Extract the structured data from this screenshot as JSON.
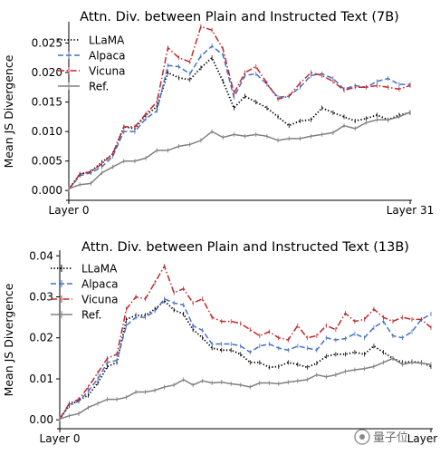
{
  "chart_data": [
    {
      "type": "line",
      "title": "Attn. Div. between Plain and Instructed Text (7B)",
      "xlabel": "",
      "ylabel": "Mean JS Divergence",
      "xticks": [
        {
          "x": 0,
          "label": "Layer 0"
        },
        {
          "x": 31,
          "label": "Layer 31"
        }
      ],
      "yticks": [
        0.0,
        0.005,
        0.01,
        0.015,
        0.02,
        0.025
      ],
      "ytick_labels": [
        "0.000",
        "0.005",
        "0.010",
        "0.015",
        "0.020",
        "0.025"
      ],
      "xlim": [
        0,
        31
      ],
      "ylim": [
        -0.0012,
        0.028
      ],
      "legend": "top-left",
      "grid": false,
      "series": [
        {
          "name": "LLaMA",
          "color": "#000000",
          "style": "dotted",
          "values": [
            0.0002,
            0.0028,
            0.0032,
            0.0048,
            0.0062,
            0.0108,
            0.0105,
            0.0128,
            0.0142,
            0.02,
            0.0191,
            0.0188,
            0.0208,
            0.0225,
            0.0185,
            0.014,
            0.016,
            0.015,
            0.014,
            0.0125,
            0.011,
            0.0118,
            0.012,
            0.014,
            0.0132,
            0.0125,
            0.0118,
            0.0122,
            0.0128,
            0.012,
            0.0128,
            0.0132
          ]
        },
        {
          "name": "Alpaca",
          "color": "#4472c4",
          "style": "dashed",
          "values": [
            0.0002,
            0.0025,
            0.003,
            0.004,
            0.0058,
            0.01,
            0.01,
            0.0122,
            0.0135,
            0.0212,
            0.021,
            0.0198,
            0.0228,
            0.0245,
            0.023,
            0.0158,
            0.0195,
            0.0198,
            0.018,
            0.0158,
            0.016,
            0.0175,
            0.0195,
            0.0198,
            0.019,
            0.0172,
            0.0178,
            0.0175,
            0.0185,
            0.019,
            0.018,
            0.018
          ]
        },
        {
          "name": "Vicuna",
          "color": "#c0282d",
          "style": "dashdot",
          "values": [
            0.0002,
            0.0028,
            0.0032,
            0.0045,
            0.0062,
            0.0108,
            0.0108,
            0.013,
            0.015,
            0.0242,
            0.0225,
            0.0218,
            0.0278,
            0.0272,
            0.024,
            0.0165,
            0.02,
            0.021,
            0.0182,
            0.0155,
            0.016,
            0.0182,
            0.02,
            0.0195,
            0.0185,
            0.017,
            0.0175,
            0.0175,
            0.0178,
            0.0175,
            0.0172,
            0.0178
          ]
        },
        {
          "name": "Ref.",
          "color": "#808080",
          "style": "solid",
          "values": [
            0.0003,
            0.001,
            0.0012,
            0.003,
            0.004,
            0.005,
            0.005,
            0.0055,
            0.0068,
            0.0068,
            0.0075,
            0.0078,
            0.0085,
            0.01,
            0.009,
            0.0095,
            0.0092,
            0.0095,
            0.0092,
            0.0085,
            0.0088,
            0.0088,
            0.0092,
            0.0095,
            0.0098,
            0.011,
            0.0105,
            0.0115,
            0.012,
            0.012,
            0.0125,
            0.0133
          ]
        }
      ]
    },
    {
      "type": "line",
      "title": "Attn. Div. between Plain and Instructed Text (13B)",
      "xlabel": "",
      "ylabel": "Mean JS Divergence",
      "xticks": [
        {
          "x": 0,
          "label": "Layer 0"
        },
        {
          "x": 39,
          "label": "Layer 39"
        }
      ],
      "yticks": [
        0.0,
        0.01,
        0.02,
        0.03,
        0.04
      ],
      "ytick_labels": [
        "0.00",
        "0.01",
        "0.02",
        "0.03",
        "0.04"
      ],
      "xlim": [
        0,
        39
      ],
      "ylim": [
        -0.0015,
        0.0405
      ],
      "legend": "top-left",
      "grid": false,
      "series": [
        {
          "name": "LLaMA",
          "color": "#000000",
          "style": "dotted",
          "values": [
            0.0002,
            0.0035,
            0.0048,
            0.006,
            0.009,
            0.013,
            0.014,
            0.0245,
            0.0255,
            0.0255,
            0.027,
            0.029,
            0.0268,
            0.0258,
            0.022,
            0.02,
            0.0175,
            0.017,
            0.017,
            0.016,
            0.014,
            0.014,
            0.0128,
            0.013,
            0.014,
            0.0135,
            0.0128,
            0.0138,
            0.0155,
            0.016,
            0.016,
            0.0165,
            0.016,
            0.018,
            0.0165,
            0.015,
            0.014,
            0.0142,
            0.014,
            0.013
          ]
        },
        {
          "name": "Alpaca",
          "color": "#4472c4",
          "style": "dashed",
          "values": [
            0.0002,
            0.0038,
            0.0045,
            0.007,
            0.01,
            0.014,
            0.0145,
            0.023,
            0.025,
            0.025,
            0.0265,
            0.0295,
            0.0285,
            0.028,
            0.023,
            0.0218,
            0.0185,
            0.0185,
            0.0185,
            0.018,
            0.0165,
            0.018,
            0.0185,
            0.0175,
            0.017,
            0.018,
            0.0175,
            0.017,
            0.02,
            0.0195,
            0.0198,
            0.021,
            0.02,
            0.0225,
            0.024,
            0.0205,
            0.02,
            0.0215,
            0.0245,
            0.0258
          ]
        },
        {
          "name": "Vicuna",
          "color": "#c0282d",
          "style": "dashdot",
          "values": [
            0.0002,
            0.004,
            0.005,
            0.008,
            0.0115,
            0.015,
            0.016,
            0.027,
            0.03,
            0.0295,
            0.0335,
            0.0375,
            0.031,
            0.032,
            0.0285,
            0.0295,
            0.025,
            0.024,
            0.024,
            0.0235,
            0.022,
            0.0205,
            0.0215,
            0.02,
            0.0195,
            0.023,
            0.02,
            0.0205,
            0.023,
            0.022,
            0.026,
            0.024,
            0.0245,
            0.027,
            0.025,
            0.024,
            0.025,
            0.0245,
            0.0245,
            0.0225
          ]
        },
        {
          "name": "Ref.",
          "color": "#808080",
          "style": "solid",
          "values": [
            0.0002,
            0.001,
            0.0015,
            0.003,
            0.004,
            0.005,
            0.005,
            0.0055,
            0.0068,
            0.0068,
            0.0072,
            0.008,
            0.0085,
            0.0098,
            0.0085,
            0.0095,
            0.009,
            0.0092,
            0.0088,
            0.0085,
            0.008,
            0.009,
            0.009,
            0.0088,
            0.0092,
            0.0095,
            0.0098,
            0.011,
            0.0105,
            0.011,
            0.0118,
            0.0122,
            0.0125,
            0.013,
            0.014,
            0.015,
            0.0135,
            0.014,
            0.0138,
            0.0135
          ]
        }
      ]
    }
  ],
  "watermark": {
    "text": "量子位"
  }
}
